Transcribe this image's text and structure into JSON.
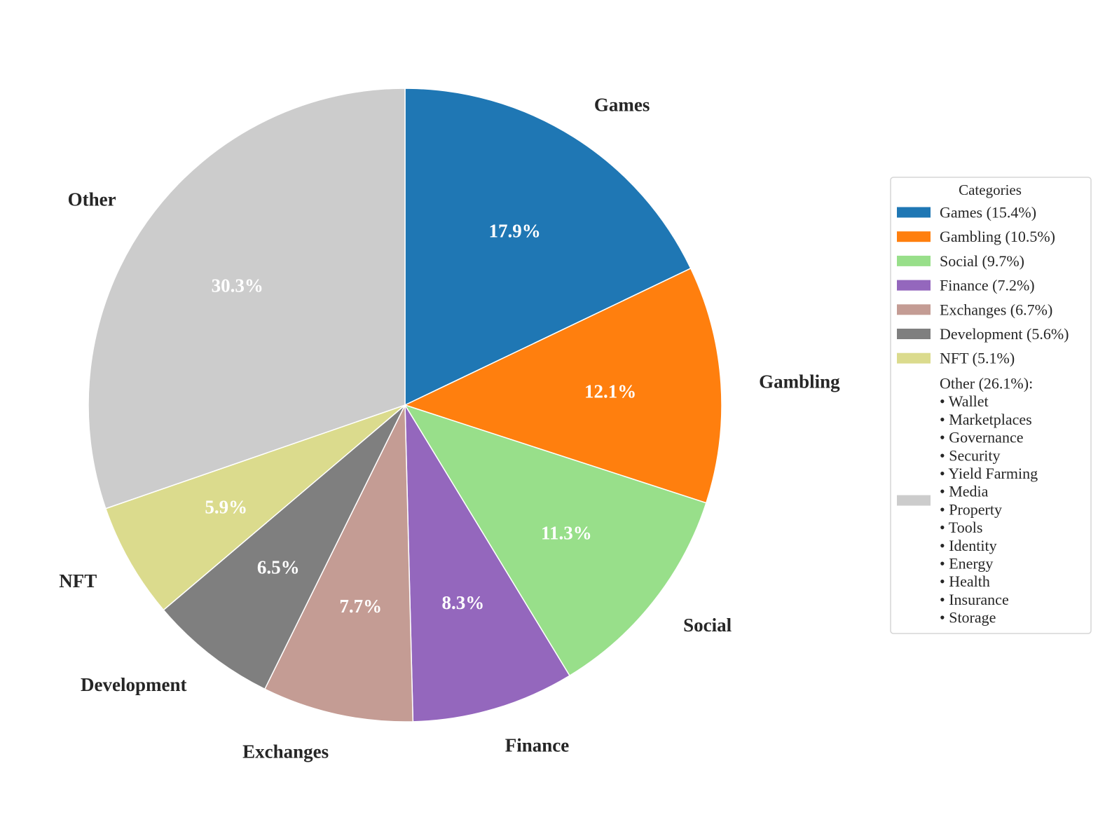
{
  "chart_data": {
    "type": "pie",
    "start_angle_deg": 90,
    "direction": "clockwise",
    "slices": [
      {
        "label": "Games",
        "value": 17.9,
        "pct_text": "17.9%",
        "color": "#1f77b4"
      },
      {
        "label": "Gambling",
        "value": 12.1,
        "pct_text": "12.1%",
        "color": "#ff7f0e"
      },
      {
        "label": "Social",
        "value": 11.3,
        "pct_text": "11.3%",
        "color": "#98df8a"
      },
      {
        "label": "Finance",
        "value": 8.3,
        "pct_text": "8.3%",
        "color": "#9467bd"
      },
      {
        "label": "Exchanges",
        "value": 7.7,
        "pct_text": "7.7%",
        "color": "#c49c94"
      },
      {
        "label": "Development",
        "value": 6.5,
        "pct_text": "6.5%",
        "color": "#7f7f7f"
      },
      {
        "label": "NFT",
        "value": 5.9,
        "pct_text": "5.9%",
        "color": "#dbdb8d"
      },
      {
        "label": "Other",
        "value": 30.3,
        "pct_text": "30.3%",
        "color": "#cccccc"
      }
    ],
    "legend": {
      "title": "Categories",
      "placement": "right",
      "entries": [
        {
          "text": "Games (15.4%)",
          "color": "#1f77b4"
        },
        {
          "text": "Gambling (10.5%)",
          "color": "#ff7f0e"
        },
        {
          "text": "Social (9.7%)",
          "color": "#98df8a"
        },
        {
          "text": "Finance (7.2%)",
          "color": "#9467bd"
        },
        {
          "text": "Exchanges (6.7%)",
          "color": "#c49c94"
        },
        {
          "text": "Development (5.6%)",
          "color": "#7f7f7f"
        },
        {
          "text": "NFT (5.1%)",
          "color": "#dbdb8d"
        }
      ],
      "other_entry": {
        "color": "#cccccc",
        "lines": [
          "Other (26.1%):",
          "• Wallet",
          "• Marketplaces",
          "• Governance",
          "• Security",
          "• Yield Farming",
          "• Media",
          "• Property",
          "• Tools",
          "• Identity",
          "• Energy",
          "• Health",
          "• Insurance",
          "• Storage"
        ]
      }
    }
  }
}
